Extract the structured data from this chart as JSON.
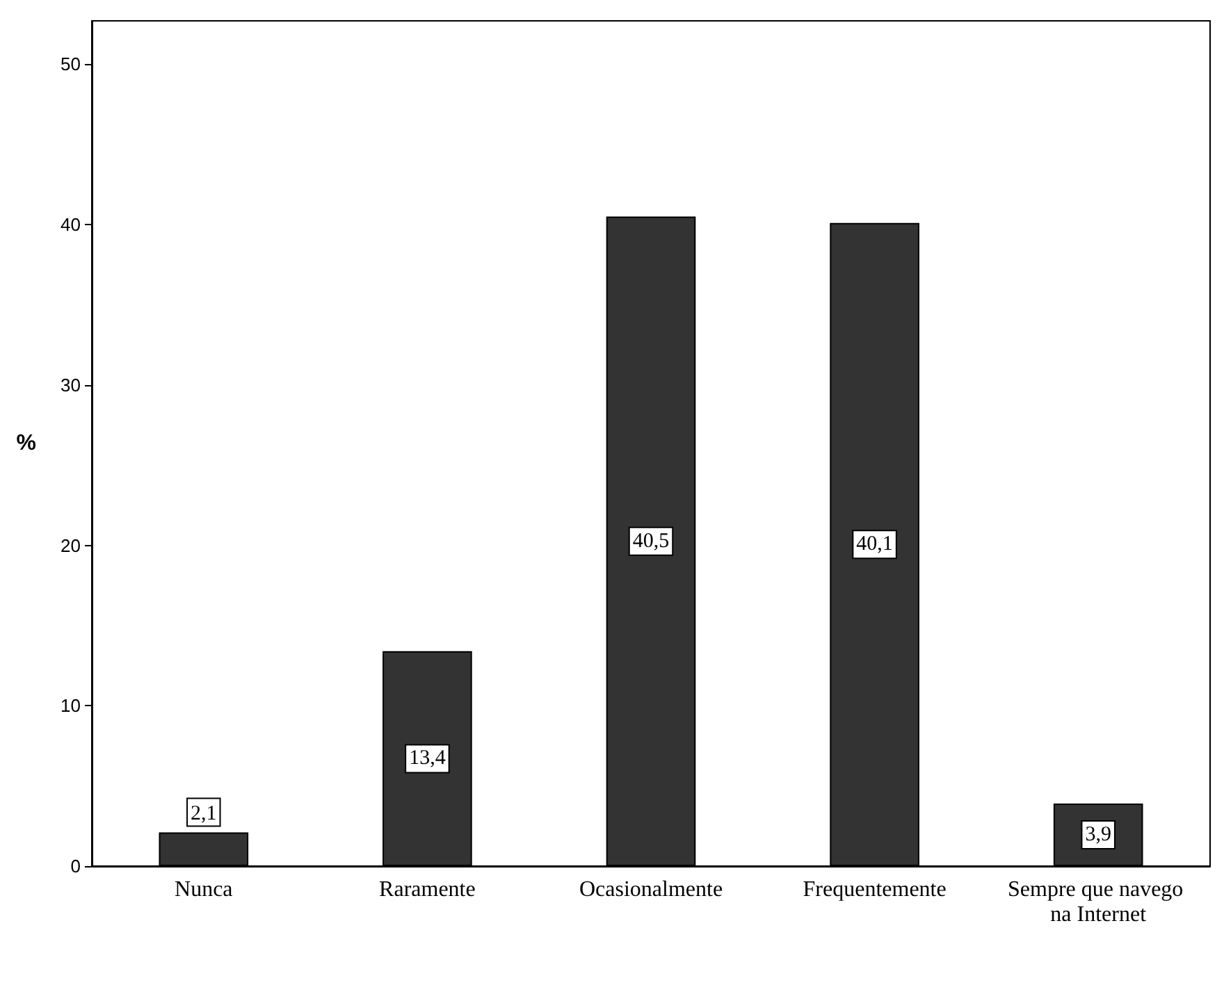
{
  "chart_data": {
    "type": "bar",
    "ylabel": "%",
    "categories": [
      "Nunca",
      "Raramente",
      "Ocasionalmente",
      "Frequentemente",
      "Sempre que navego na Internet"
    ],
    "values": [
      2.1,
      13.4,
      40.5,
      40.1,
      3.9
    ],
    "value_labels": [
      "2,1",
      "13,4",
      "40,5",
      "40,1",
      "3,9"
    ],
    "color": "#333333",
    "ylim": [
      0,
      52.7
    ],
    "yticks": [
      0,
      10,
      20,
      30,
      40,
      50
    ],
    "grid": false
  }
}
